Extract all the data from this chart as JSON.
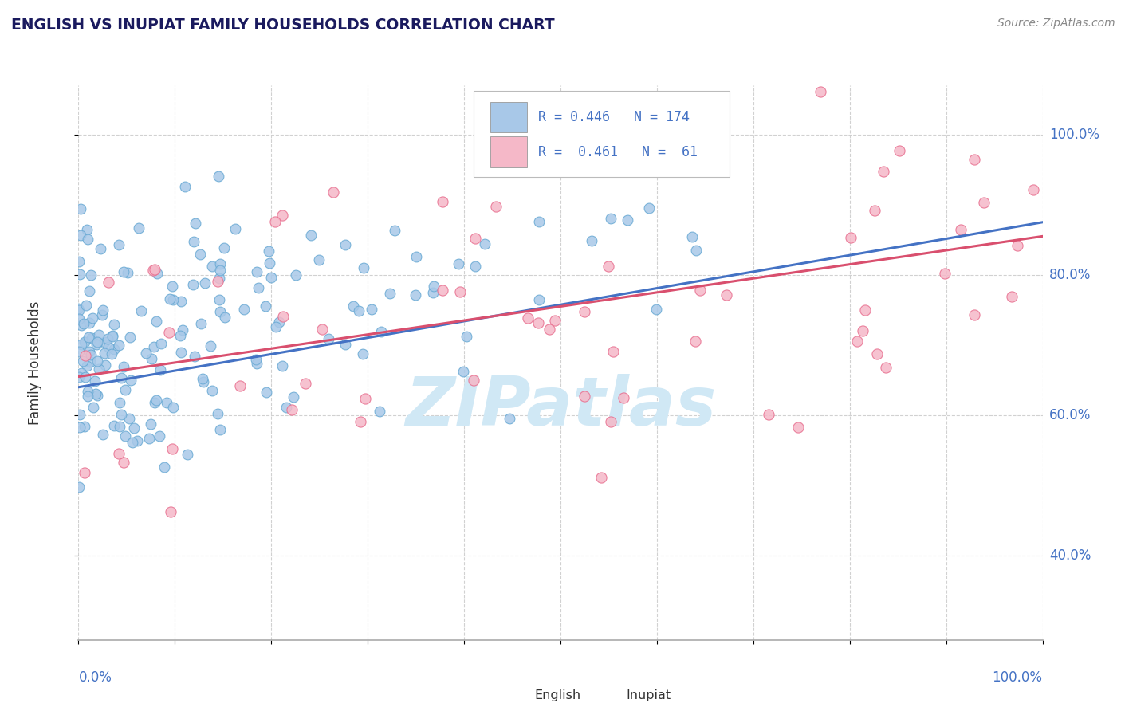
{
  "title": "ENGLISH VS INUPIAT FAMILY HOUSEHOLDS CORRELATION CHART",
  "source_text": "Source: ZipAtlas.com",
  "ylabel": "Family Households",
  "y_tick_labels": [
    "40.0%",
    "60.0%",
    "80.0%",
    "100.0%"
  ],
  "y_tick_values": [
    0.4,
    0.6,
    0.8,
    1.0
  ],
  "english_R": 0.446,
  "english_N": 174,
  "inupiat_R": 0.461,
  "inupiat_N": 61,
  "english_color": "#a8c8e8",
  "english_edge_color": "#6aaad4",
  "inupiat_color": "#f5b8c8",
  "inupiat_edge_color": "#e87090",
  "english_line_color": "#4472c4",
  "inupiat_line_color": "#d94f6e",
  "background_color": "#ffffff",
  "grid_color": "#cccccc",
  "watermark_text": "ZIPatlas",
  "watermark_color": "#d0e8f5",
  "title_color": "#1a1a5e",
  "label_color": "#4472c4",
  "legend_text_color": "#4472c4",
  "axis_label_color": "#333333",
  "english_seed": 42,
  "inupiat_seed": 99,
  "xlim": [
    0.0,
    1.0
  ],
  "ylim": [
    0.28,
    1.07
  ],
  "eng_trend_start": 0.64,
  "eng_trend_end": 0.875,
  "inp_trend_start": 0.655,
  "inp_trend_end": 0.855
}
